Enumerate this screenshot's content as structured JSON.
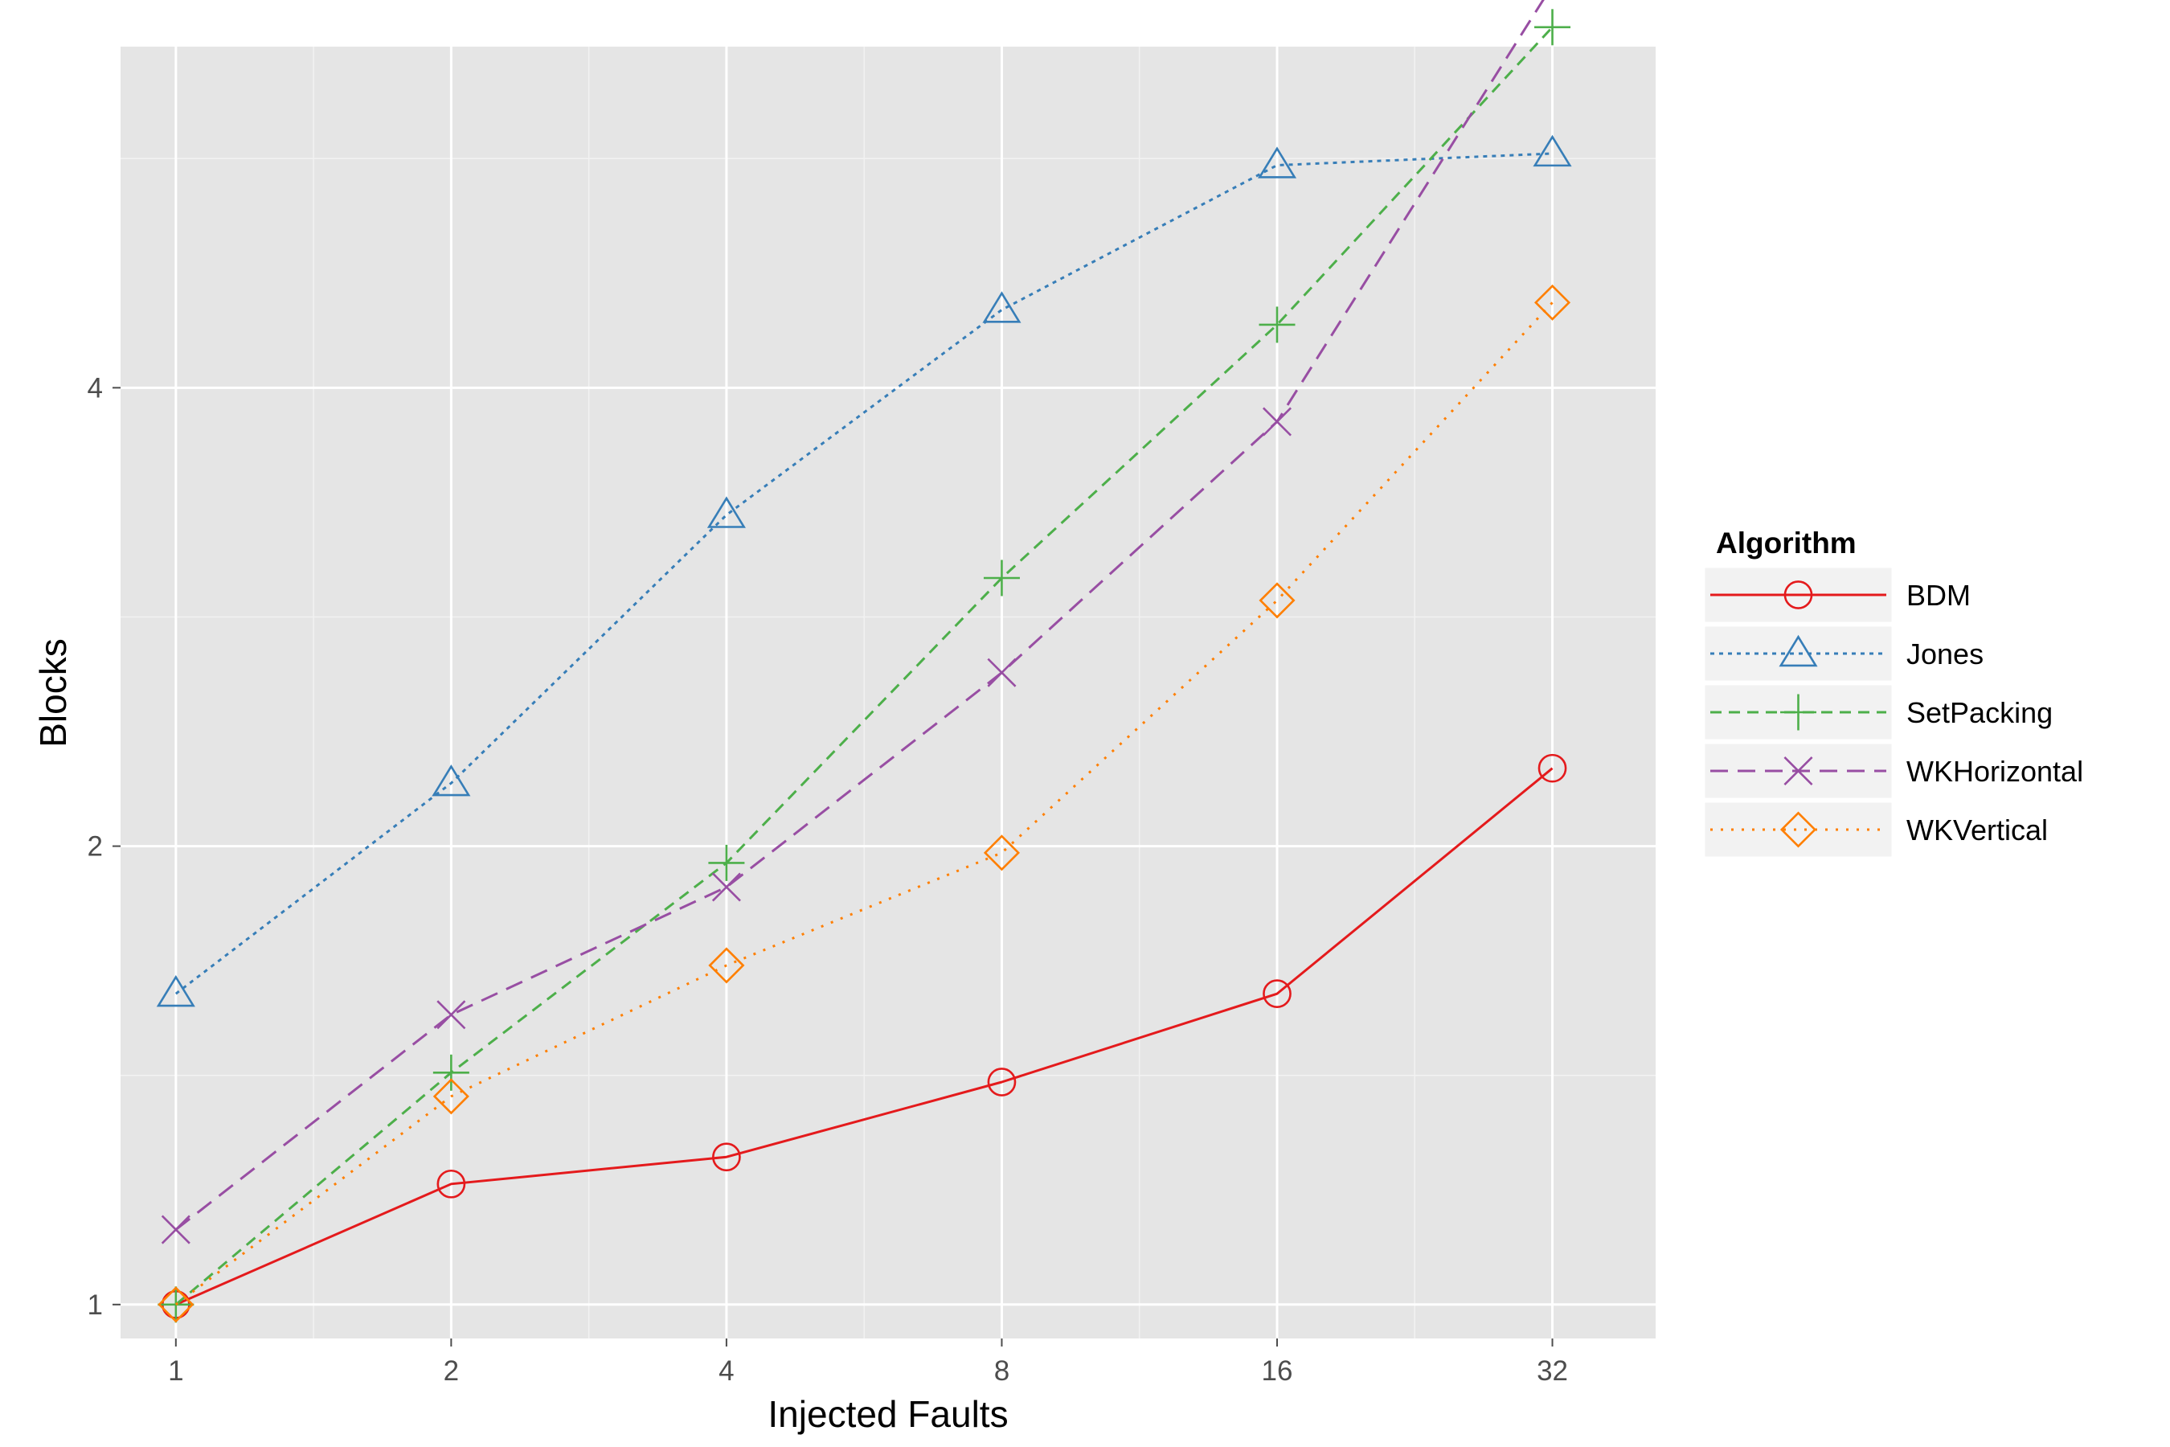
{
  "chart_data": {
    "type": "line",
    "title": "",
    "xlabel": "Injected Faults",
    "ylabel": "Blocks",
    "x_scale": "log2",
    "y_scale": "log2",
    "x": [
      1,
      2,
      4,
      8,
      16,
      32
    ],
    "x_tick_labels": [
      "1",
      "2",
      "4",
      "8",
      "16",
      "32"
    ],
    "y_ticks": [
      1,
      2,
      4
    ],
    "y_tick_labels": [
      "1",
      "2",
      "4"
    ],
    "xlim": [
      0.87,
      41.5
    ],
    "ylim": [
      0.95,
      6.7
    ],
    "grid": true,
    "legend": {
      "title": "Algorithm",
      "position": "right"
    },
    "series": [
      {
        "name": "BDM",
        "color": "#E41A1C",
        "marker": "circle",
        "dash": "solid",
        "values": [
          1.0,
          1.2,
          1.25,
          1.4,
          1.6,
          2.25
        ]
      },
      {
        "name": "Jones",
        "color": "#377EB8",
        "marker": "triangle",
        "dash": "dotted-dense",
        "values": [
          1.6,
          2.2,
          3.3,
          4.5,
          5.6,
          5.7
        ]
      },
      {
        "name": "SetPacking",
        "color": "#4DAF4A",
        "marker": "plus",
        "dash": "dashed",
        "values": [
          1.0,
          1.42,
          1.95,
          3.0,
          4.4,
          6.9
        ]
      },
      {
        "name": "WKHorizontal",
        "color": "#984EA3",
        "marker": "cross",
        "dash": "long-dashed",
        "values": [
          1.12,
          1.55,
          1.88,
          2.6,
          3.8,
          7.35
        ]
      },
      {
        "name": "WKVertical",
        "color": "#FF7F00",
        "marker": "diamond",
        "dash": "dotted",
        "values": [
          1.0,
          1.37,
          1.67,
          1.98,
          2.9,
          4.55
        ]
      }
    ]
  }
}
